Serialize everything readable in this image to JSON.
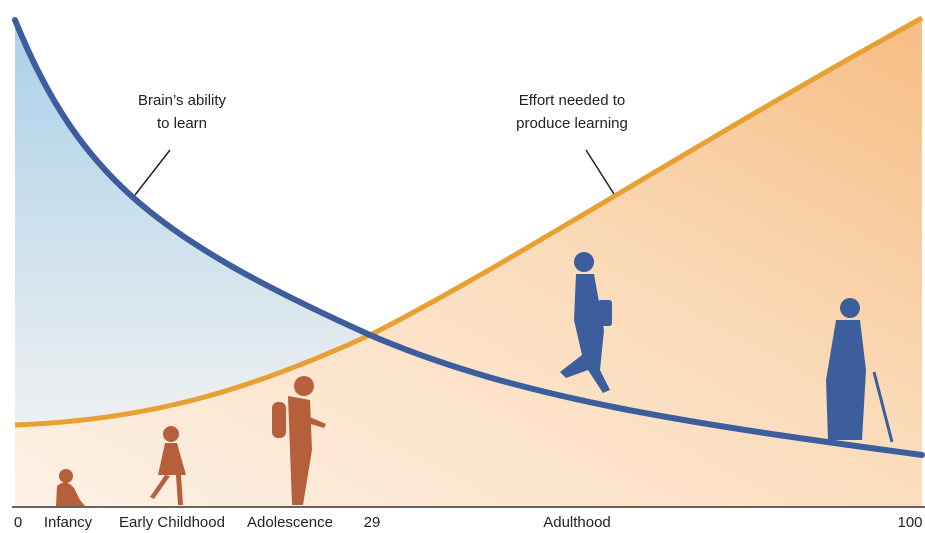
{
  "chart_data": {
    "type": "concept-curves",
    "x_labels": [
      "0",
      "Infancy",
      "Early Childhood",
      "Adolescence",
      "29",
      "Adulthood",
      "100"
    ],
    "annotations": [
      {
        "lines": [
          "Brain’s ability",
          "to learn"
        ]
      },
      {
        "lines": [
          "Effort needed to",
          "produce learning"
        ]
      }
    ]
  }
}
